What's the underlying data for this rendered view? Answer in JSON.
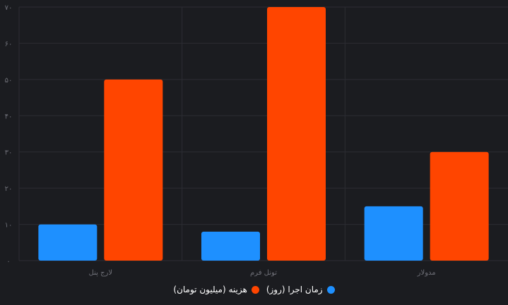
{
  "chart_data": {
    "type": "bar",
    "categories": [
      "لارج پنل",
      "تونل فرم",
      "مدولار"
    ],
    "series": [
      {
        "name": "زمان اجرا (روز)",
        "values": [
          10,
          8,
          15
        ],
        "color": "#1e90ff"
      },
      {
        "name": "هزینه (میلیون تومان)",
        "values": [
          50,
          70,
          30
        ],
        "color": "#ff4500"
      }
    ],
    "yticks": [
      "۰",
      "۱۰",
      "۲۰",
      "۳۰",
      "۴۰",
      "۵۰",
      "۶۰",
      "۷۰"
    ],
    "ylim": [
      0,
      70
    ],
    "grid": true,
    "legend_position": "bottom",
    "background": "#1b1c20",
    "grid_color": "#2c2d33",
    "tick_color": "#6f7078"
  }
}
